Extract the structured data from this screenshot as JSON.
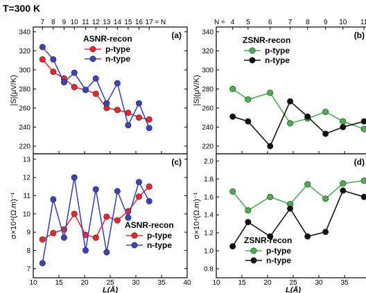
{
  "header": {
    "temperature": "T=300 K"
  },
  "colors": {
    "p_red": "#e8282e",
    "n_blue": "#3a46b8",
    "p_green": "#4caf50",
    "n_black": "#111111"
  },
  "chart_data": [
    {
      "id": "a",
      "type": "line",
      "panel_label": "(a)",
      "legend_title": "ASNR-recon",
      "legend_position": "top-right",
      "xlabel": "",
      "ylabel": "|S|(μV/K)",
      "xlim": [
        10,
        40
      ],
      "ylim": [
        212,
        345
      ],
      "xticks": [],
      "yticks": [
        220,
        240,
        260,
        280,
        300,
        320,
        340
      ],
      "top_axis": {
        "ticks": [
          {
            "x": 11.8,
            "label": "7"
          },
          {
            "x": 13.9,
            "label": "8"
          },
          {
            "x": 16.0,
            "label": "9"
          },
          {
            "x": 18.0,
            "label": "10"
          },
          {
            "x": 20.2,
            "label": "11"
          },
          {
            "x": 22.2,
            "label": "12"
          },
          {
            "x": 24.3,
            "label": "13"
          },
          {
            "x": 26.4,
            "label": "14"
          },
          {
            "x": 28.5,
            "label": "15"
          },
          {
            "x": 30.6,
            "label": "16"
          },
          {
            "x": 32.6,
            "label": "17"
          }
        ],
        "suffix": "= N"
      },
      "series": [
        {
          "name": "p-type",
          "color": "#e8282e",
          "x": [
            11.8,
            13.9,
            16.0,
            18.0,
            20.2,
            22.2,
            24.3,
            26.4,
            28.5,
            30.6,
            32.6
          ],
          "values": [
            311,
            298,
            291,
            282,
            279,
            275,
            260,
            258,
            255,
            250,
            248
          ]
        },
        {
          "name": "n-type",
          "color": "#3a46b8",
          "x": [
            11.8,
            13.9,
            16.0,
            18.0,
            20.2,
            22.2,
            24.3,
            26.4,
            28.5,
            30.6,
            32.6
          ],
          "values": [
            324,
            311,
            287,
            297,
            279,
            291,
            265,
            286,
            242,
            265,
            239
          ]
        }
      ]
    },
    {
      "id": "b",
      "type": "line",
      "panel_label": "(b)",
      "legend_title": "ZSNR-recon",
      "legend_position": "top-left",
      "xlabel": "",
      "ylabel": "|S|(μV/K)",
      "xlim": [
        10,
        40
      ],
      "ylim": [
        212,
        345
      ],
      "xticks": [],
      "yticks": [
        220,
        240,
        260,
        280,
        300,
        320,
        340
      ],
      "top_axis": {
        "prefix": "N =",
        "ticks": [
          {
            "x": 13.2,
            "label": "4"
          },
          {
            "x": 16.2,
            "label": "5"
          },
          {
            "x": 20.5,
            "label": "6"
          },
          {
            "x": 24.4,
            "label": "7"
          },
          {
            "x": 27.8,
            "label": "8"
          },
          {
            "x": 31.3,
            "label": "9"
          },
          {
            "x": 34.7,
            "label": "10"
          },
          {
            "x": 38.8,
            "label": "11"
          }
        ]
      },
      "series": [
        {
          "name": "p-type",
          "color": "#4caf50",
          "x": [
            13.2,
            16.2,
            20.5,
            24.4,
            27.8,
            31.3,
            34.7,
            38.8
          ],
          "values": [
            280,
            269,
            276,
            244,
            249,
            256,
            246,
            238
          ]
        },
        {
          "name": "n-type",
          "color": "#111111",
          "x": [
            13.2,
            16.2,
            20.5,
            24.4,
            27.8,
            31.3,
            34.7,
            38.8
          ],
          "values": [
            251,
            246,
            220,
            267,
            251,
            233,
            240,
            246
          ]
        }
      ]
    },
    {
      "id": "c",
      "type": "line",
      "panel_label": "(c)",
      "legend_title": "ASNR-recon",
      "legend_position": "bottom-right",
      "xlabel": "L(Å)",
      "ylabel": "σ×10⁴(Ω.m)⁻¹",
      "xlim": [
        10,
        40
      ],
      "ylim": [
        6.5,
        13.3
      ],
      "xticks": [
        10,
        15,
        20,
        25,
        30,
        35,
        40
      ],
      "yticks": [
        7,
        8,
        9,
        10,
        11,
        12,
        13
      ],
      "series": [
        {
          "name": "p-type",
          "color": "#e8282e",
          "x": [
            11.8,
            13.9,
            16.0,
            18.0,
            20.2,
            22.2,
            24.3,
            26.4,
            28.5,
            30.6,
            32.6
          ],
          "values": [
            8.6,
            8.95,
            9.15,
            10.0,
            8.85,
            8.7,
            9.85,
            9.65,
            10.15,
            10.95,
            11.5
          ]
        },
        {
          "name": "n-type",
          "color": "#3a46b8",
          "x": [
            11.8,
            13.9,
            16.0,
            18.0,
            20.2,
            22.2,
            24.3,
            26.4,
            28.5,
            30.6,
            32.6
          ],
          "values": [
            7.3,
            10.8,
            8.7,
            12.0,
            8.0,
            11.35,
            7.9,
            11.25,
            9.8,
            11.75,
            10.7
          ]
        }
      ]
    },
    {
      "id": "d",
      "type": "line",
      "panel_label": "(d)",
      "legend_title": "ZSNR-recon",
      "legend_position": "bottom-left",
      "xlabel": "L(Å)",
      "ylabel": "σ×10⁴(Ω.m)⁻¹",
      "xlim": [
        10,
        40
      ],
      "ylim": [
        0.7,
        2.08
      ],
      "xticks": [
        10,
        15,
        20,
        25,
        30,
        35,
        40
      ],
      "yticks": [
        0.8,
        1.0,
        1.2,
        1.4,
        1.6,
        1.8,
        2.0
      ],
      "series": [
        {
          "name": "p-type",
          "color": "#4caf50",
          "x": [
            13.2,
            16.2,
            20.5,
            24.4,
            27.8,
            31.3,
            34.7,
            38.8
          ],
          "values": [
            1.66,
            1.45,
            1.6,
            1.52,
            1.74,
            1.58,
            1.75,
            1.78
          ]
        },
        {
          "name": "n-type",
          "color": "#111111",
          "x": [
            13.2,
            16.2,
            20.5,
            24.4,
            27.8,
            31.3,
            34.7,
            38.8
          ],
          "values": [
            1.05,
            1.32,
            1.16,
            1.47,
            1.16,
            1.21,
            1.67,
            1.6
          ]
        }
      ]
    }
  ]
}
